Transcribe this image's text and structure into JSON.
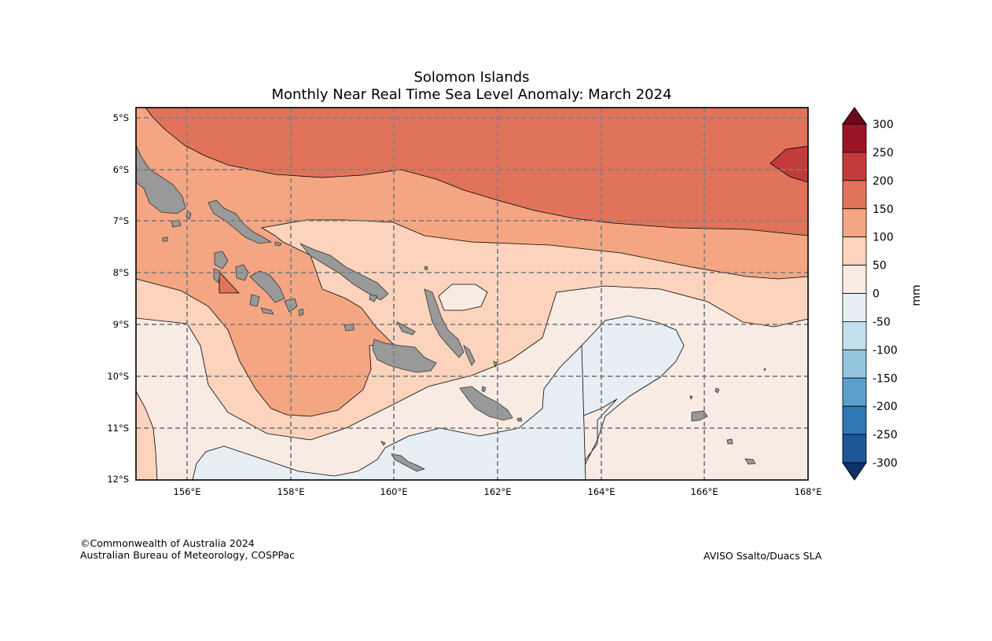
{
  "title": {
    "line1": "Solomon Islands",
    "line2": "Monthly Near Real Time Sea Level Anomaly: March 2024"
  },
  "map": {
    "lat_labels": [
      "5°S",
      "6°S",
      "7°S",
      "8°S",
      "9°S",
      "10°S",
      "11°S",
      "12°S"
    ],
    "lon_labels": [
      "156°E",
      "158°E",
      "160°E",
      "162°E",
      "164°E",
      "166°E",
      "168°E"
    ],
    "lat_range": [
      -12,
      -4.8
    ],
    "lon_range": [
      155,
      168
    ]
  },
  "colorbar": {
    "unit": "mm",
    "levels": [
      "300",
      "250",
      "200",
      "150",
      "100",
      "50",
      "0",
      "-50",
      "-100",
      "-150",
      "-200",
      "-250",
      "-300"
    ],
    "colors_top_to_bottom": [
      "#9c1527",
      "#c43b3b",
      "#e0735a",
      "#f4a683",
      "#fcd3bc",
      "#f8ebe4",
      "#e8eff4",
      "#c4dfed",
      "#95c4df",
      "#5aa0cc",
      "#2f76b4",
      "#1d5597"
    ],
    "extend_max_color": "#6a0a1f",
    "extend_min_color": "#0d3469"
  },
  "credits": {
    "left_line1": "©Commonwealth of Australia 2024",
    "left_line2": "Australian Bureau of Meteorology, COSPPac",
    "right": "AVISO Ssalto/Duacs SLA"
  }
}
